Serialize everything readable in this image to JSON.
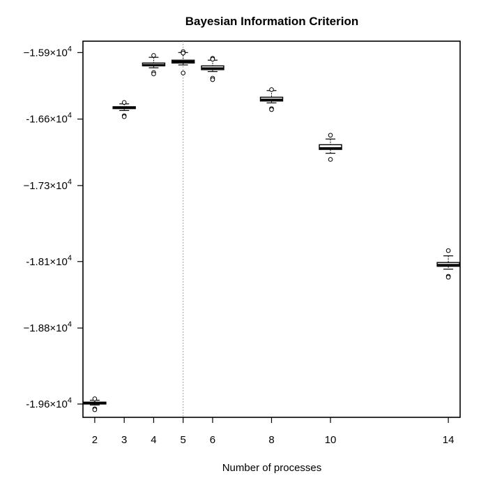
{
  "chart_data": {
    "type": "boxplot",
    "title": "Bayesian Information Criterion",
    "xlabel": "Number of processes",
    "ylabel": "",
    "x_ticks": [
      2,
      3,
      4,
      5,
      6,
      8,
      10,
      14
    ],
    "x_tick_labels": [
      "2",
      "3",
      "4",
      "5",
      "6",
      "8",
      "10",
      "14"
    ],
    "xlim": [
      1.6,
      14.4
    ],
    "ylim": [
      -19740,
      -15780
    ],
    "y_tick_values": [
      -15900,
      -16600,
      -17300,
      -18100,
      -18800,
      -19600
    ],
    "y_tick_labels": [
      {
        "mantissa": "−1.59",
        "times": "×10",
        "exp": "4"
      },
      {
        "mantissa": "-1.66",
        "times": "×10",
        "exp": "4"
      },
      {
        "mantissa": "−1.73",
        "times": "×10",
        "exp": "4"
      },
      {
        "mantissa": "-1.81",
        "times": "×10",
        "exp": "4"
      },
      {
        "mantissa": "−1.88",
        "times": "×10",
        "exp": "4"
      },
      {
        "mantissa": "-1.96",
        "times": "×10",
        "exp": "4"
      }
    ],
    "reference_line": {
      "x": 5,
      "style": "dotted"
    },
    "boxes": [
      {
        "x": 2,
        "whisker_low": -19610,
        "q1": -19600,
        "median": -19590,
        "q3": -19580,
        "whisker_high": -19560,
        "outliers": [
          -19545,
          -19650,
          -19660
        ]
      },
      {
        "x": 3,
        "whisker_low": -16510,
        "q1": -16490,
        "median": -16480,
        "q3": -16470,
        "whisker_high": -16440,
        "outliers": [
          -16425,
          -16565,
          -16575
        ]
      },
      {
        "x": 4,
        "whisker_low": -16060,
        "q1": -16040,
        "median": -16030,
        "q3": -16010,
        "whisker_high": -15950,
        "outliers": [
          -15930,
          -16110,
          -16125
        ]
      },
      {
        "x": 5,
        "whisker_low": -16030,
        "q1": -16010,
        "median": -15995,
        "q3": -15980,
        "whisker_high": -15900,
        "outliers": [
          -15890,
          -15905,
          -16115
        ]
      },
      {
        "x": 6,
        "whisker_low": -16100,
        "q1": -16080,
        "median": -16065,
        "q3": -16040,
        "whisker_high": -15980,
        "outliers": [
          -15960,
          -15970,
          -16170,
          -16185
        ]
      },
      {
        "x": 8,
        "whisker_low": -16430,
        "q1": -16410,
        "median": -16395,
        "q3": -16370,
        "whisker_high": -16300,
        "outliers": [
          -16290,
          -16490,
          -16500
        ]
      },
      {
        "x": 10,
        "whisker_low": -16960,
        "q1": -16920,
        "median": -16905,
        "q3": -16870,
        "whisker_high": -16810,
        "outliers": [
          -16770,
          -17025
        ]
      },
      {
        "x": 14,
        "whisker_low": -18180,
        "q1": -18150,
        "median": -18135,
        "q3": -18110,
        "whisker_high": -18040,
        "outliers": [
          -17985,
          -18255,
          -18265
        ]
      }
    ],
    "grid": false,
    "legend": "none"
  }
}
